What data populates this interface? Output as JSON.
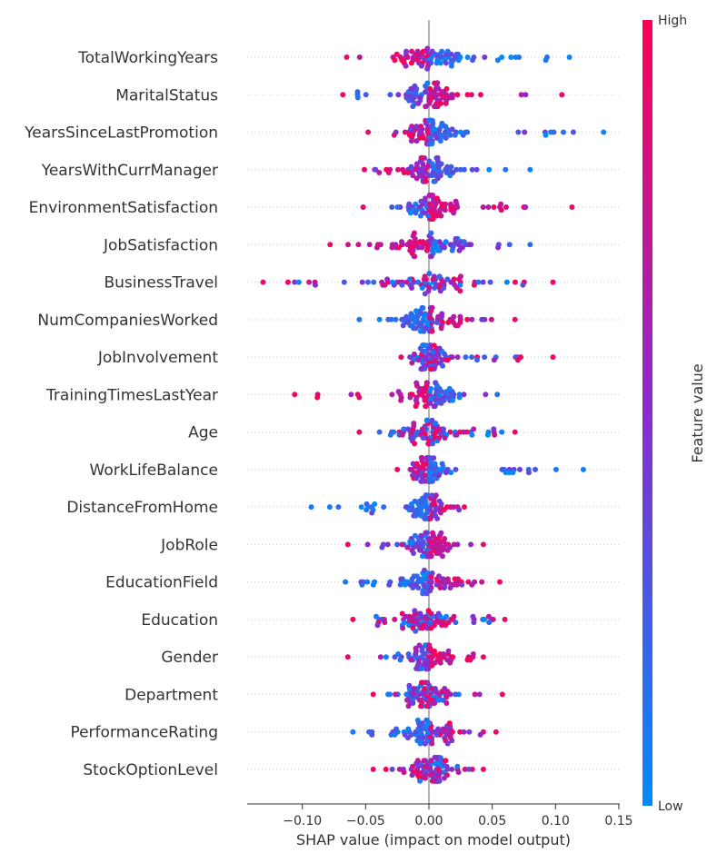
{
  "chart_data": {
    "type": "scatter",
    "subtype": "shap-beeswarm",
    "xlabel": "SHAP value (impact on model output)",
    "xlim": [
      -0.145,
      0.152
    ],
    "xticks": [
      -0.1,
      -0.05,
      0.0,
      0.05,
      0.1,
      0.15
    ],
    "xtick_labels": [
      "−0.10",
      "−0.05",
      "0.00",
      "0.05",
      "0.10",
      "0.15"
    ],
    "features": [
      "TotalWorkingYears",
      "MaritalStatus",
      "YearsSinceLastPromotion",
      "YearsWithCurrManager",
      "EnvironmentSatisfaction",
      "JobSatisfaction",
      "BusinessTravel",
      "NumCompaniesWorked",
      "JobInvolvement",
      "TrainingTimesLastYear",
      "Age",
      "WorkLifeBalance",
      "DistanceFromHome",
      "JobRole",
      "EducationField",
      "Education",
      "Gender",
      "Department",
      "PerformanceRating",
      "StockOptionLevel"
    ],
    "feature_ranges": [
      {
        "min": -0.065,
        "max": 0.111,
        "skew": "low_right"
      },
      {
        "min": -0.068,
        "max": 0.105,
        "skew": "high_right"
      },
      {
        "min": -0.048,
        "max": 0.138,
        "skew": "low_left_high_right"
      },
      {
        "min": -0.051,
        "max": 0.08,
        "skew": "low_right"
      },
      {
        "min": -0.052,
        "max": 0.113,
        "skew": "high_right"
      },
      {
        "min": -0.078,
        "max": 0.08,
        "skew": "high_left"
      },
      {
        "min": -0.131,
        "max": 0.098,
        "skew": "mixed"
      },
      {
        "min": -0.055,
        "max": 0.068,
        "skew": "low_left"
      },
      {
        "min": -0.022,
        "max": 0.098,
        "skew": "mixed"
      },
      {
        "min": -0.106,
        "max": 0.054,
        "skew": "high_left"
      },
      {
        "min": -0.055,
        "max": 0.068,
        "skew": "mixed"
      },
      {
        "min": -0.025,
        "max": 0.122,
        "skew": "low_right"
      },
      {
        "min": -0.093,
        "max": 0.028,
        "skew": "low_left"
      },
      {
        "min": -0.064,
        "max": 0.043,
        "skew": "high_right"
      },
      {
        "min": -0.066,
        "max": 0.056,
        "skew": "low_left"
      },
      {
        "min": -0.06,
        "max": 0.06,
        "skew": "mixed"
      },
      {
        "min": -0.064,
        "max": 0.043,
        "skew": "high_right"
      },
      {
        "min": -0.044,
        "max": 0.058,
        "skew": "mixed"
      },
      {
        "min": -0.06,
        "max": 0.053,
        "skew": "low"
      },
      {
        "min": -0.044,
        "max": 0.043,
        "skew": "mixed"
      }
    ],
    "points_per_feature": 80,
    "colorbar": {
      "title": "Feature value",
      "high_label": "High",
      "low_label": "Low",
      "high_color": "#ff0052",
      "mid_color": "#8a2bd0",
      "low_color": "#008bfb"
    },
    "zero_line": true,
    "grid": false
  }
}
